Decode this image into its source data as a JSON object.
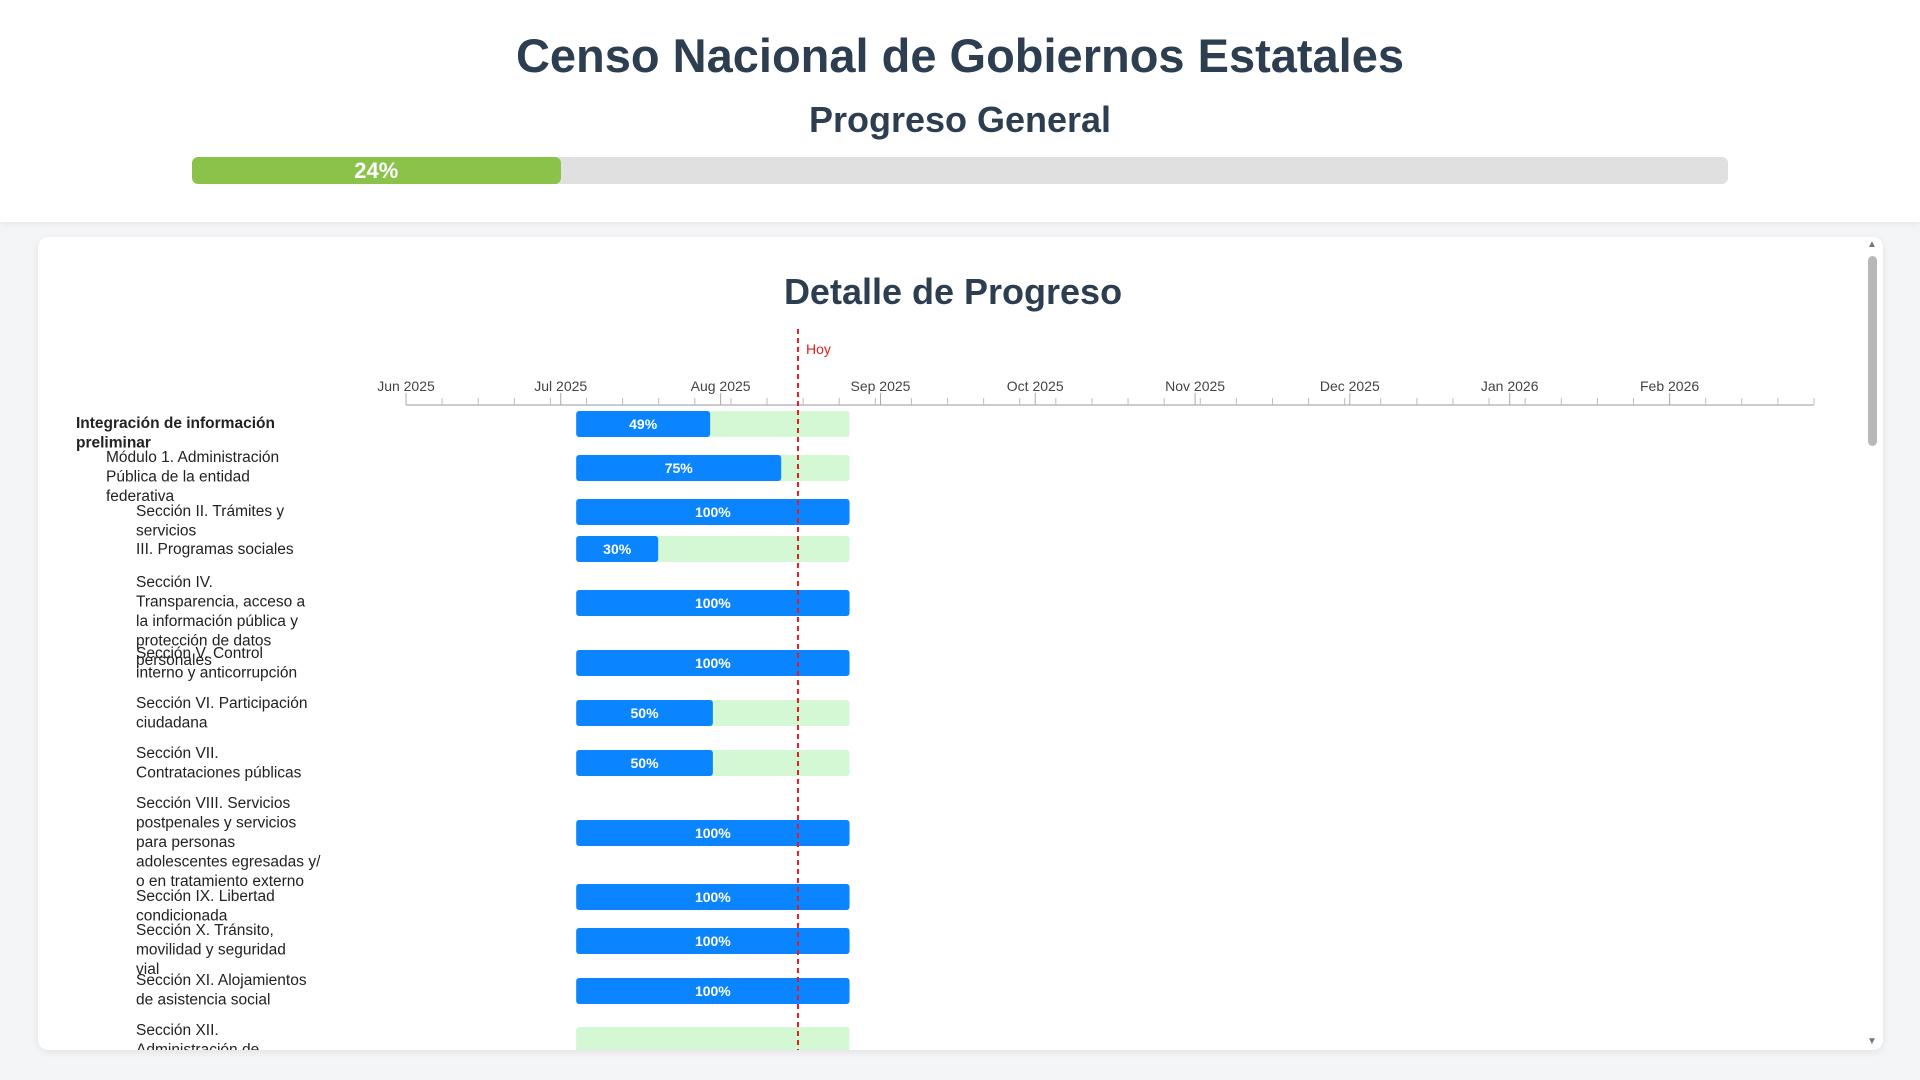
{
  "header": {
    "title": "Censo Nacional de Gobiernos Estatales",
    "subtitle": "Progreso General",
    "overall_progress": 0.24,
    "overall_label": "24%",
    "fill_color": "#8bc34a"
  },
  "detail": {
    "title": "Detalle de Progreso"
  },
  "chart_data": {
    "type": "gantt",
    "today_label": "Hoy",
    "today_date": "2025-08-16",
    "timeline_start": "2025-06-01",
    "timeline_end": "2026-03-01",
    "month_ticks": [
      "Jun 2025",
      "Jul 2025",
      "Aug 2025",
      "Sep 2025",
      "Oct 2025",
      "Nov 2025",
      "Dec 2025",
      "Jan 2026",
      "Feb 2026"
    ],
    "colors": {
      "progress": "#0a84ff",
      "remaining": "#d4f7d4",
      "today": "#e02020"
    },
    "tasks": [
      {
        "label": "Integración de información preliminar",
        "level": 0,
        "start": "2025-07-04",
        "end": "2025-08-26",
        "progress": 0.49,
        "progress_label": "49%"
      },
      {
        "label": "Módulo 1. Administración Pública de la entidad federativa",
        "level": 1,
        "start": "2025-07-04",
        "end": "2025-08-26",
        "progress": 0.75,
        "progress_label": "75%"
      },
      {
        "label": "Sección II. Trámites y servicios",
        "level": 2,
        "start": "2025-07-04",
        "end": "2025-08-26",
        "progress": 1.0,
        "progress_label": "100%"
      },
      {
        "label": "III. Programas sociales",
        "level": 2,
        "start": "2025-07-04",
        "end": "2025-08-26",
        "progress": 0.3,
        "progress_label": "30%"
      },
      {
        "label": "Sección IV. Transparencia, acceso a la información pública y protección de datos personales",
        "level": 2,
        "start": "2025-07-04",
        "end": "2025-08-26",
        "progress": 1.0,
        "progress_label": "100%"
      },
      {
        "label": "Sección V. Control interno y anticorrupción",
        "level": 2,
        "start": "2025-07-04",
        "end": "2025-08-26",
        "progress": 1.0,
        "progress_label": "100%"
      },
      {
        "label": "Sección VI. Participación ciudadana",
        "level": 2,
        "start": "2025-07-04",
        "end": "2025-08-26",
        "progress": 0.5,
        "progress_label": "50%"
      },
      {
        "label": "Sección VII. Contrataciones públicas",
        "level": 2,
        "start": "2025-07-04",
        "end": "2025-08-26",
        "progress": 0.5,
        "progress_label": "50%"
      },
      {
        "label": "Sección VIII. Servicios postpenales y servicios para personas adolescentes egresadas y/ o en tratamiento externo",
        "level": 2,
        "start": "2025-07-04",
        "end": "2025-08-26",
        "progress": 1.0,
        "progress_label": "100%"
      },
      {
        "label": "Sección IX. Libertad condicionada",
        "level": 2,
        "start": "2025-07-04",
        "end": "2025-08-26",
        "progress": 1.0,
        "progress_label": "100%"
      },
      {
        "label": "Sección X. Tránsito, movilidad y seguridad vial",
        "level": 2,
        "start": "2025-07-04",
        "end": "2025-08-26",
        "progress": 1.0,
        "progress_label": "100%"
      },
      {
        "label": "Sección XI. Alojamientos de asistencia social",
        "level": 2,
        "start": "2025-07-04",
        "end": "2025-08-26",
        "progress": 1.0,
        "progress_label": "100%"
      },
      {
        "label": "Sección XII. Administración de archivos y gestión documental",
        "level": 2,
        "start": "2025-07-04",
        "end": "2025-08-26",
        "progress": 0,
        "progress_label": ""
      }
    ]
  }
}
